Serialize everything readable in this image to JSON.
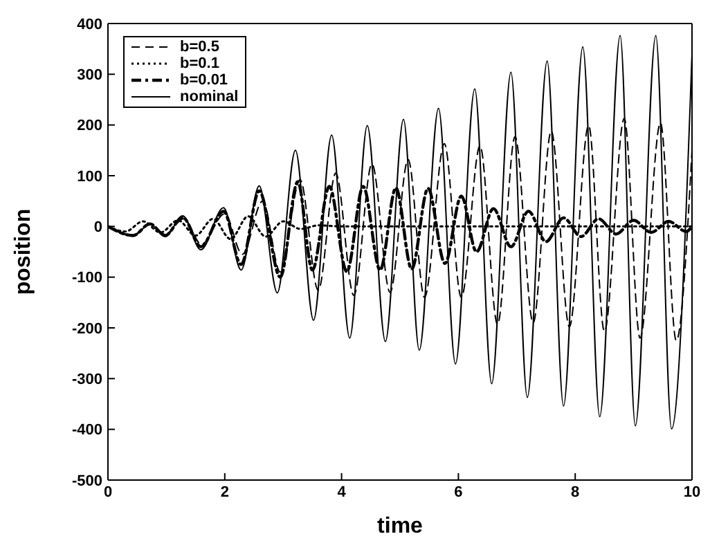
{
  "chart_data": {
    "type": "line",
    "xlabel": "time",
    "ylabel": "position",
    "xlim": [
      0,
      10
    ],
    "ylim": [
      -500,
      400
    ],
    "xticks": [
      0,
      2,
      4,
      6,
      8,
      10
    ],
    "yticks": [
      -500,
      -400,
      -300,
      -200,
      -100,
      0,
      100,
      200,
      300,
      400
    ],
    "grid": false,
    "legend": "top left",
    "marker": "none",
    "series": [
      {
        "name": "b=0.5",
        "color": "#000000",
        "line_style": "dashed",
        "x": [
          0,
          0.43,
          0.72,
          0.98,
          1.3,
          1.6,
          2.0,
          2.3,
          2.65,
          2.95,
          3.29,
          3.6,
          3.9,
          4.21,
          4.52,
          4.83,
          5.14,
          5.42,
          5.76,
          6.05,
          6.37,
          6.67,
          6.97,
          7.28,
          7.59,
          7.9,
          8.23,
          8.5,
          8.84,
          9.11,
          9.46,
          9.73,
          10
        ],
        "values": [
          0,
          -17,
          5,
          -15,
          15,
          -35,
          25,
          -55,
          50,
          -90,
          92,
          -126,
          105,
          -136,
          123,
          -130,
          132,
          -140,
          163,
          -140,
          159,
          -193,
          177,
          -190,
          188,
          -198,
          199,
          -207,
          213,
          -220,
          204,
          -225,
          150
        ]
      },
      {
        "name": "b=0.1",
        "color": "#000000",
        "line_style": "dotted",
        "x": [
          0,
          0.3,
          0.6,
          0.9,
          1.2,
          1.5,
          1.8,
          2.1,
          2.4,
          2.7,
          3.0,
          3.3,
          3.6,
          4,
          10
        ],
        "values": [
          0,
          -10,
          10,
          -12,
          12,
          -18,
          15,
          -25,
          20,
          -20,
          10,
          -5,
          2,
          0,
          0
        ]
      },
      {
        "name": "b=0.01",
        "color": "#000000",
        "line_style": "dashdot",
        "x": [
          0,
          0.43,
          0.72,
          0.98,
          1.28,
          1.59,
          1.98,
          2.28,
          2.59,
          2.95,
          3.25,
          3.5,
          3.79,
          4.09,
          4.37,
          4.66,
          4.93,
          5.2,
          5.48,
          5.77,
          6.05,
          6.31,
          6.6,
          6.9,
          7.2,
          7.5,
          7.8,
          8.1,
          8.4,
          8.7,
          9.0,
          9.3,
          9.6,
          9.9,
          10
        ],
        "values": [
          0,
          -18,
          5,
          -18,
          18,
          -40,
          30,
          -75,
          70,
          -100,
          88,
          -86,
          79,
          -89,
          79,
          -86,
          76,
          -84,
          75,
          -73,
          60,
          -50,
          35,
          -40,
          30,
          -30,
          17,
          -20,
          15,
          -15,
          12,
          -12,
          10,
          -10,
          0
        ]
      },
      {
        "name": "nominal",
        "color": "#000000",
        "line_style": "solid",
        "x": [
          0,
          0.43,
          0.72,
          0.98,
          1.28,
          1.59,
          1.98,
          2.28,
          2.59,
          2.9,
          3.21,
          3.52,
          3.83,
          4.14,
          4.44,
          4.75,
          5.06,
          5.33,
          5.66,
          5.95,
          6.28,
          6.57,
          6.9,
          7.18,
          7.52,
          7.8,
          8.13,
          8.42,
          8.77,
          9.03,
          9.38,
          9.65,
          10
        ],
        "values": [
          0,
          -19,
          5,
          -20,
          21,
          -46,
          37,
          -86,
          80,
          -131,
          150,
          -185,
          180,
          -220,
          199,
          -227,
          211,
          -244,
          233,
          -271,
          271,
          -310,
          304,
          -337,
          326,
          -354,
          354,
          -375,
          376,
          -393,
          376,
          -399,
          340
        ]
      }
    ]
  }
}
